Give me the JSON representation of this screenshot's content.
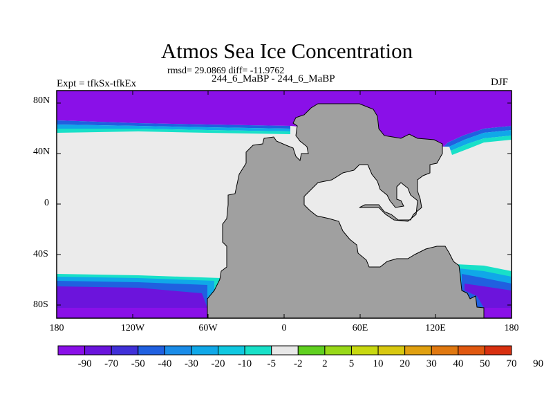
{
  "title": "Atmos Sea Ice Concentration",
  "stats": "rmsd= 29.0869 diff= -11.9762",
  "subtitle": "244_6_MaBP - 244_6_MaBP",
  "expt": "Expt = tfkSx-tfkEx",
  "season": "DJF",
  "map": {
    "projection": "cylindrical equidistant",
    "lon_range": [
      -180,
      180
    ],
    "lat_range": [
      -90,
      90
    ],
    "y_ticks": [
      "80N",
      "40N",
      "0",
      "40S",
      "80S"
    ],
    "x_ticks": [
      "180",
      "120W",
      "60W",
      "0",
      "60E",
      "120E",
      "180"
    ],
    "colors": {
      "land": "#a0a0a0",
      "ocean_near_zero": "#ebebeb",
      "strong_negative": "#8a10e8",
      "very_strong_negative": "#6c14dc"
    }
  },
  "colorbar": {
    "colors": [
      "#8a10e8",
      "#6a14dc",
      "#4030d8",
      "#2060e0",
      "#1a8ce8",
      "#10a8e8",
      "#10c8e0",
      "#18e0c8",
      "#e8e8e8",
      "#60d020",
      "#98d818",
      "#c8d810",
      "#d8c810",
      "#e0a010",
      "#e07810",
      "#e05810",
      "#d83010"
    ],
    "labels": [
      "-90",
      "-70",
      "-50",
      "-40",
      "-30",
      "-20",
      "-10",
      "-5",
      "-2",
      "2",
      "5",
      "10",
      "20",
      "30",
      "40",
      "50",
      "70",
      "90"
    ]
  }
}
